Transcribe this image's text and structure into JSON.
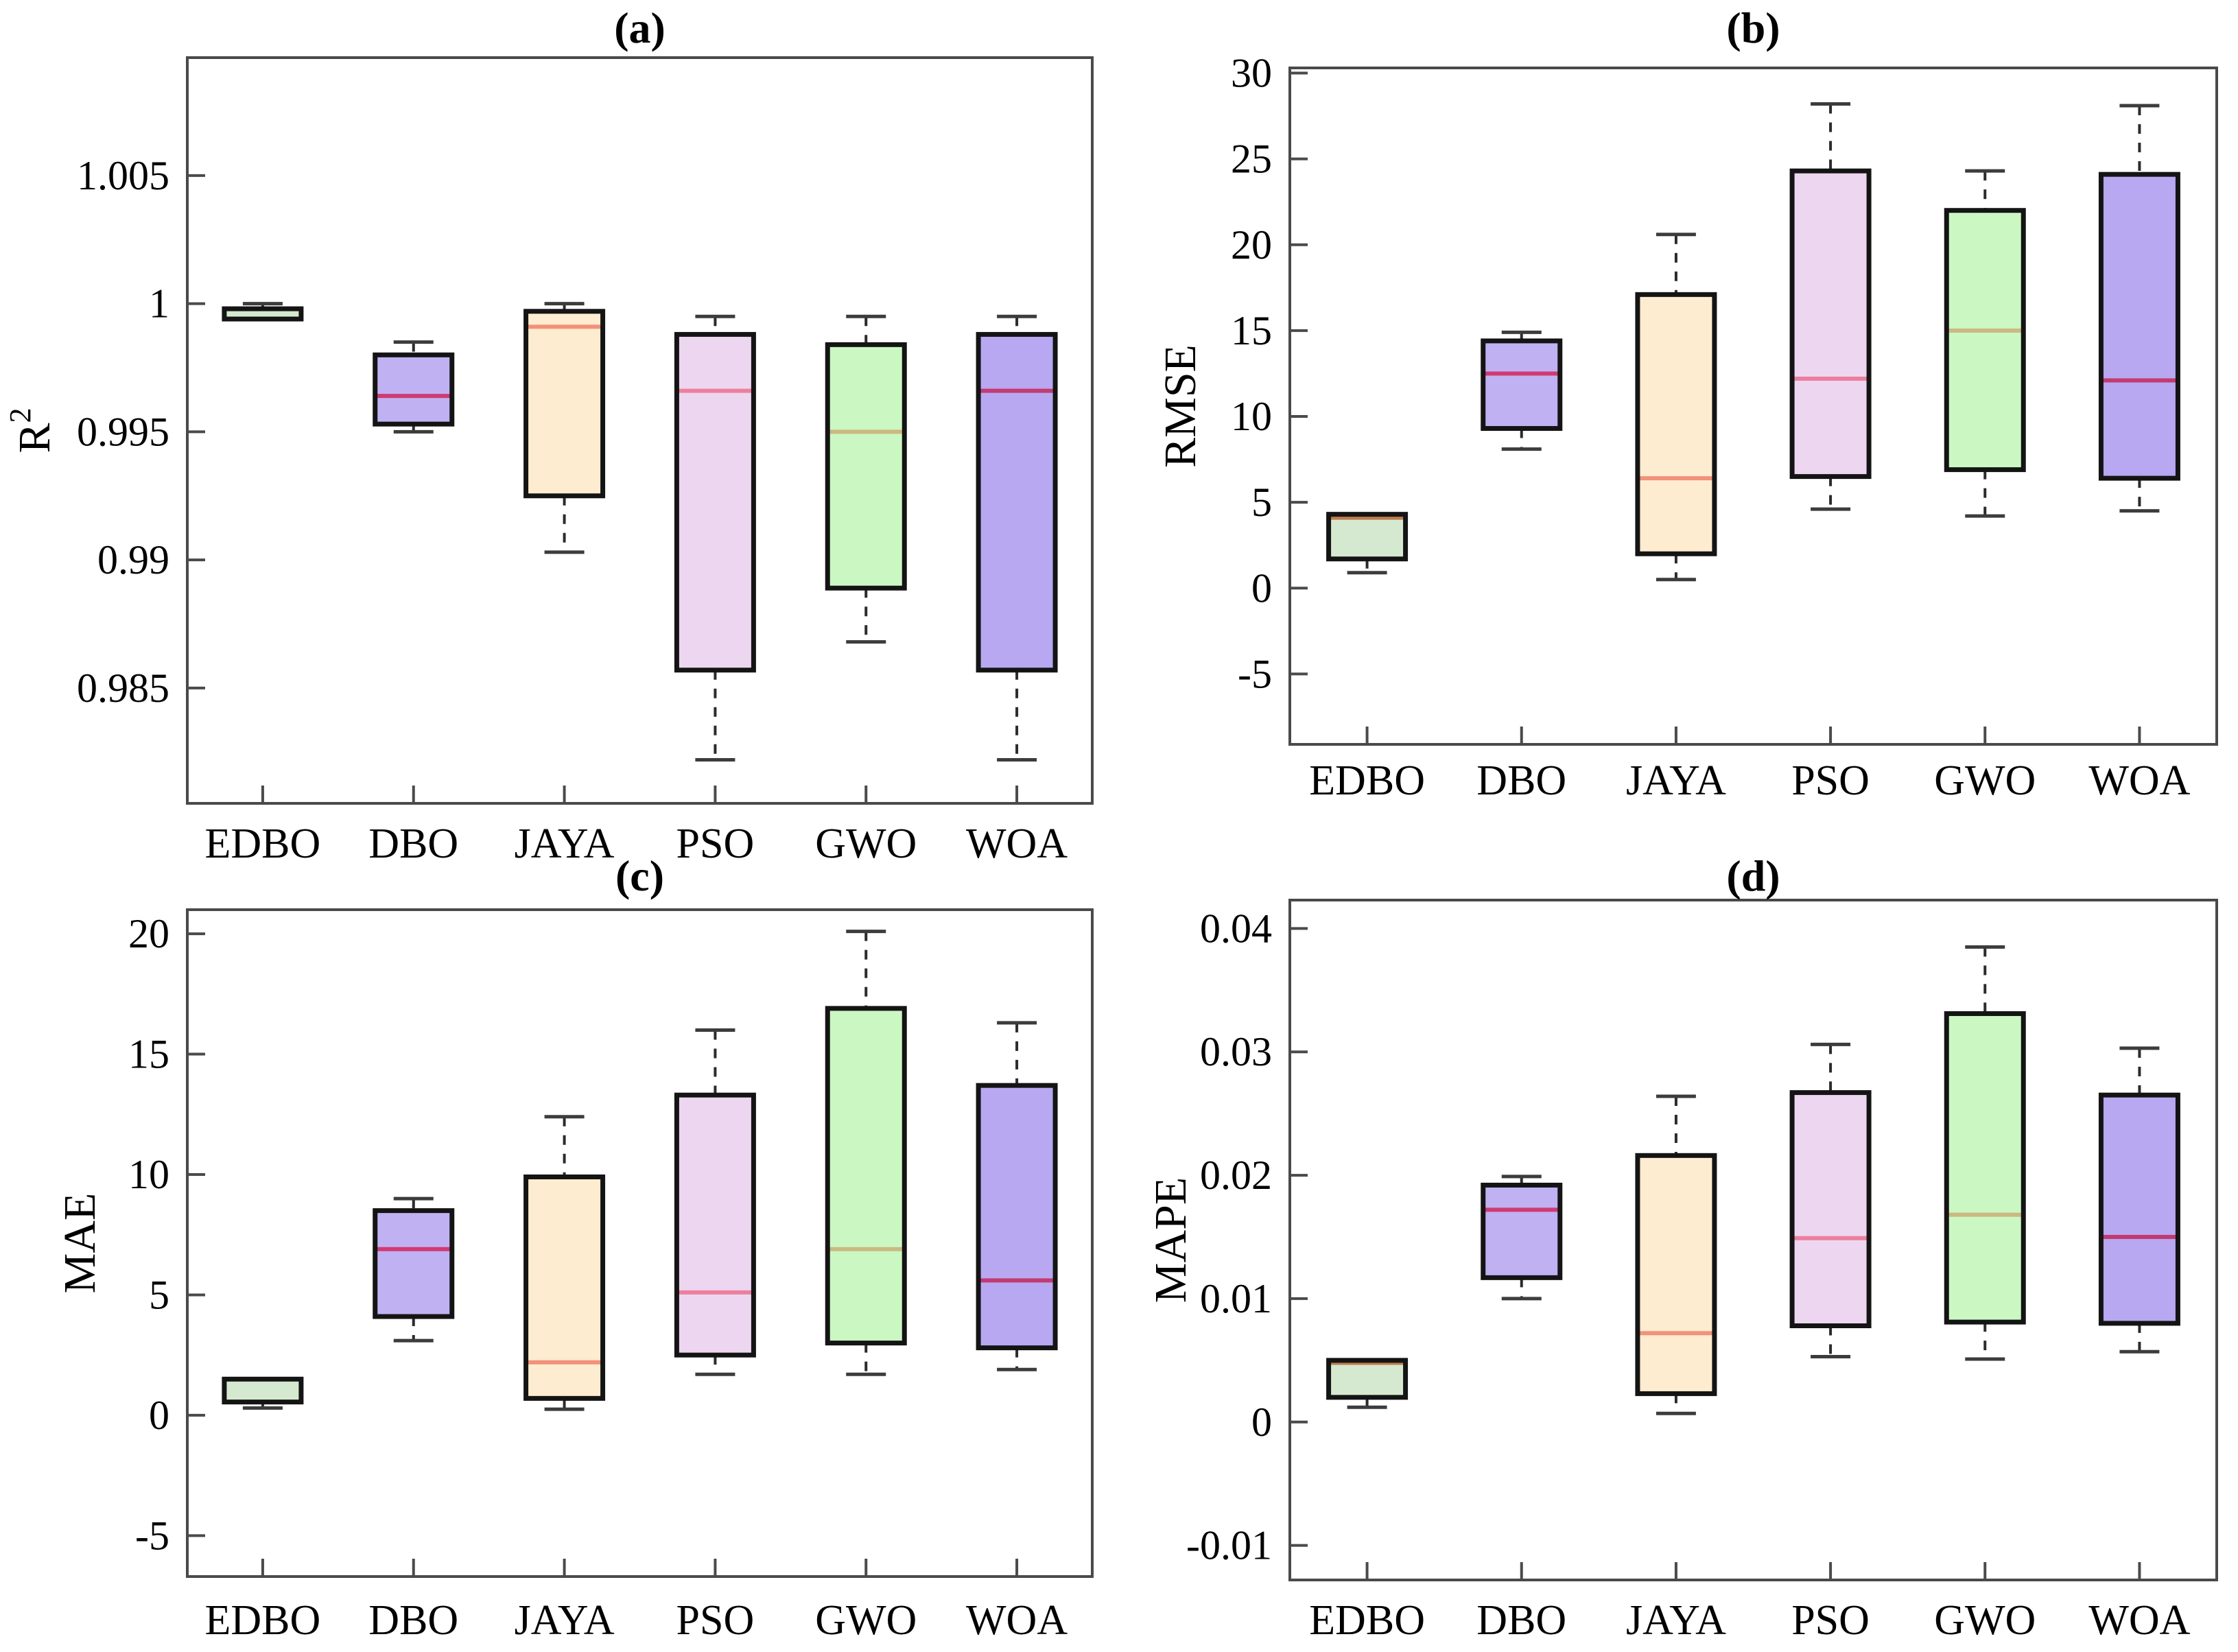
{
  "figure": {
    "background": "#ffffff",
    "axis_color": "#4a4a4a",
    "box_edge_color": "#141414",
    "whisker_color": "#2b2b2b",
    "cap_color": "#3c3c3c",
    "text_color": "#000000"
  },
  "categories": [
    "EDBO",
    "DBO",
    "JAYA",
    "PSO",
    "GWO",
    "WOA"
  ],
  "box_styles": [
    {
      "category": "EDBO",
      "fill": "#d5e9d0",
      "median_color": "#bf7b4d"
    },
    {
      "category": "DBO",
      "fill": "#c0b1f2",
      "median_color": "#d03a72"
    },
    {
      "category": "JAYA",
      "fill": "#fdeccf",
      "median_color": "#f2917a"
    },
    {
      "category": "PSO",
      "fill": "#edd6ef",
      "median_color": "#ec7f9e"
    },
    {
      "category": "GWO",
      "fill": "#cbf7c3",
      "median_color": "#cbb981"
    },
    {
      "category": "WOA",
      "fill": "#b7a8f1",
      "median_color": "#c23a72"
    }
  ],
  "chart_data": [
    {
      "panel": "a",
      "type": "box",
      "title": "(a)",
      "ylabel": "R^2",
      "ylim": [
        0.9805,
        1.0096
      ],
      "yticks": [
        {
          "v": 1.005,
          "label": "1.005"
        },
        {
          "v": 1.0,
          "label": "1"
        },
        {
          "v": 0.995,
          "label": "0.995"
        },
        {
          "v": 0.99,
          "label": "0.99"
        },
        {
          "v": 0.985,
          "label": "0.985"
        }
      ],
      "categories": [
        "EDBO",
        "DBO",
        "JAYA",
        "PSO",
        "GWO",
        "WOA"
      ],
      "boxes": [
        {
          "category": "EDBO",
          "whisker_low": 0.9994,
          "q1": 0.9994,
          "median": 0.9994,
          "q3": 0.9998,
          "whisker_high": 1.0
        },
        {
          "category": "DBO",
          "whisker_low": 0.995,
          "q1": 0.9953,
          "median": 0.9964,
          "q3": 0.998,
          "whisker_high": 0.9985
        },
        {
          "category": "JAYA",
          "whisker_low": 0.9903,
          "q1": 0.9925,
          "median": 0.9991,
          "q3": 0.9997,
          "whisker_high": 1.0
        },
        {
          "category": "PSO",
          "whisker_low": 0.9822,
          "q1": 0.9857,
          "median": 0.9966,
          "q3": 0.9988,
          "whisker_high": 0.9995
        },
        {
          "category": "GWO",
          "whisker_low": 0.9868,
          "q1": 0.9889,
          "median": 0.995,
          "q3": 0.9984,
          "whisker_high": 0.9995
        },
        {
          "category": "WOA",
          "whisker_low": 0.9822,
          "q1": 0.9857,
          "median": 0.9966,
          "q3": 0.9988,
          "whisker_high": 0.9995
        }
      ]
    },
    {
      "panel": "b",
      "type": "box",
      "title": "(b)",
      "ylabel": "RMSE",
      "ylim": [
        -9.1,
        30.3
      ],
      "yticks": [
        {
          "v": 30,
          "label": "30"
        },
        {
          "v": 25,
          "label": "25"
        },
        {
          "v": 20,
          "label": "20"
        },
        {
          "v": 15,
          "label": "15"
        },
        {
          "v": 10,
          "label": "10"
        },
        {
          "v": 5,
          "label": "5"
        },
        {
          "v": 0,
          "label": "0"
        },
        {
          "v": -5,
          "label": "-5"
        }
      ],
      "categories": [
        "EDBO",
        "DBO",
        "JAYA",
        "PSO",
        "GWO",
        "WOA"
      ],
      "boxes": [
        {
          "category": "EDBO",
          "whisker_low": 0.9,
          "q1": 1.7,
          "median": 4.1,
          "q3": 4.3,
          "whisker_high": 4.3
        },
        {
          "category": "DBO",
          "whisker_low": 8.1,
          "q1": 9.3,
          "median": 12.5,
          "q3": 14.4,
          "whisker_high": 14.9
        },
        {
          "category": "JAYA",
          "whisker_low": 0.5,
          "q1": 2.0,
          "median": 6.4,
          "q3": 17.1,
          "whisker_high": 20.6
        },
        {
          "category": "PSO",
          "whisker_low": 4.6,
          "q1": 6.5,
          "median": 12.2,
          "q3": 24.3,
          "whisker_high": 28.2
        },
        {
          "category": "GWO",
          "whisker_low": 4.2,
          "q1": 6.9,
          "median": 15.0,
          "q3": 22.0,
          "whisker_high": 24.3
        },
        {
          "category": "WOA",
          "whisker_low": 4.5,
          "q1": 6.4,
          "median": 12.1,
          "q3": 24.1,
          "whisker_high": 28.1
        }
      ]
    },
    {
      "panel": "c",
      "type": "box",
      "title": "(c)",
      "ylabel": "MAE",
      "ylim": [
        -6.7,
        21.0
      ],
      "yticks": [
        {
          "v": 20,
          "label": "20"
        },
        {
          "v": 15,
          "label": "15"
        },
        {
          "v": 10,
          "label": "10"
        },
        {
          "v": 5,
          "label": "5"
        },
        {
          "v": 0,
          "label": "0"
        },
        {
          "v": -5,
          "label": "-5"
        }
      ],
      "categories": [
        "EDBO",
        "DBO",
        "JAYA",
        "PSO",
        "GWO",
        "WOA"
      ],
      "boxes": [
        {
          "category": "EDBO",
          "whisker_low": 0.3,
          "q1": 0.55,
          "median": 0.55,
          "q3": 1.5,
          "whisker_high": 1.5
        },
        {
          "category": "DBO",
          "whisker_low": 3.1,
          "q1": 4.1,
          "median": 6.9,
          "q3": 8.5,
          "whisker_high": 9.0
        },
        {
          "category": "JAYA",
          "whisker_low": 0.25,
          "q1": 0.7,
          "median": 2.2,
          "q3": 9.9,
          "whisker_high": 12.4
        },
        {
          "category": "PSO",
          "whisker_low": 1.7,
          "q1": 2.5,
          "median": 5.1,
          "q3": 13.3,
          "whisker_high": 16.0
        },
        {
          "category": "GWO",
          "whisker_low": 1.7,
          "q1": 3.0,
          "median": 6.9,
          "q3": 16.9,
          "whisker_high": 20.1
        },
        {
          "category": "WOA",
          "whisker_low": 1.9,
          "q1": 2.8,
          "median": 5.6,
          "q3": 13.7,
          "whisker_high": 16.3
        }
      ]
    },
    {
      "panel": "d",
      "type": "box",
      "title": "(d)",
      "ylabel": "MAPE",
      "ylim": [
        -0.0128,
        0.0423
      ],
      "yticks": [
        {
          "v": 0.04,
          "label": "0.04"
        },
        {
          "v": 0.03,
          "label": "0.03"
        },
        {
          "v": 0.02,
          "label": "0.02"
        },
        {
          "v": 0.01,
          "label": "0.01"
        },
        {
          "v": 0,
          "label": "0"
        },
        {
          "v": -0.01,
          "label": "-0.01"
        }
      ],
      "categories": [
        "EDBO",
        "DBO",
        "JAYA",
        "PSO",
        "GWO",
        "WOA"
      ],
      "boxes": [
        {
          "category": "EDBO",
          "whisker_low": 0.0012,
          "q1": 0.002,
          "median": 0.0048,
          "q3": 0.005,
          "whisker_high": 0.005
        },
        {
          "category": "DBO",
          "whisker_low": 0.01,
          "q1": 0.0117,
          "median": 0.0172,
          "q3": 0.0192,
          "whisker_high": 0.0199
        },
        {
          "category": "JAYA",
          "whisker_low": 0.0007,
          "q1": 0.0023,
          "median": 0.0072,
          "q3": 0.0216,
          "whisker_high": 0.0264
        },
        {
          "category": "PSO",
          "whisker_low": 0.0053,
          "q1": 0.0078,
          "median": 0.0149,
          "q3": 0.0267,
          "whisker_high": 0.0306
        },
        {
          "category": "GWO",
          "whisker_low": 0.0051,
          "q1": 0.0081,
          "median": 0.0168,
          "q3": 0.0331,
          "whisker_high": 0.0385
        },
        {
          "category": "WOA",
          "whisker_low": 0.0057,
          "q1": 0.008,
          "median": 0.015,
          "q3": 0.0265,
          "whisker_high": 0.0303
        }
      ]
    }
  ]
}
